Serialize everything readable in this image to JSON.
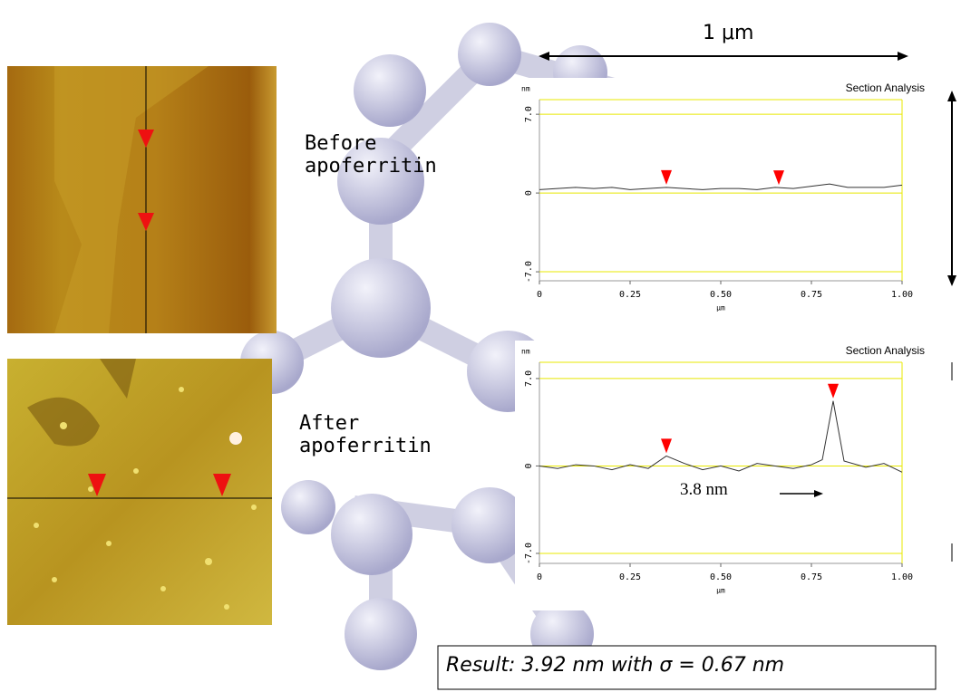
{
  "chart_data": [
    {
      "type": "line",
      "title": "Section Analysis",
      "y_unit": "nm",
      "xlabel": "μm",
      "x": [
        0,
        0.05,
        0.1,
        0.15,
        0.2,
        0.25,
        0.3,
        0.35,
        0.4,
        0.45,
        0.5,
        0.55,
        0.6,
        0.65,
        0.7,
        0.75,
        0.8,
        0.85,
        0.9,
        0.95,
        1.0
      ],
      "values": [
        0.3,
        0.4,
        0.5,
        0.4,
        0.5,
        0.3,
        0.4,
        0.5,
        0.4,
        0.3,
        0.4,
        0.4,
        0.3,
        0.5,
        0.4,
        0.6,
        0.8,
        0.5,
        0.5,
        0.5,
        0.7
      ],
      "color": "#333333",
      "markers": [
        0.35,
        0.66
      ],
      "marker_color": "#ff0000",
      "xlim": [
        0,
        1
      ],
      "xticks": [
        0,
        0.25,
        {
          "value": 0.5,
          "label": "0.50"
        },
        0.75,
        {
          "value": 1,
          "label": "1.00"
        }
      ],
      "ylim": [
        -7.8,
        8.3
      ],
      "yticks": [
        {
          "value": 7,
          "label": "7.0"
        },
        0,
        {
          "value": -7,
          "label": "-7.0"
        }
      ],
      "grid": true,
      "grid_color": "#e8e800"
    },
    {
      "type": "line",
      "title": "Section Analysis",
      "y_unit": "nm",
      "xlabel": "μm",
      "x": [
        0,
        0.05,
        0.1,
        0.15,
        0.2,
        0.25,
        0.3,
        0.35,
        0.4,
        0.45,
        0.5,
        0.55,
        0.6,
        0.65,
        0.7,
        0.75,
        0.78,
        0.81,
        0.84,
        0.9,
        0.95,
        1.0
      ],
      "values": [
        0,
        -0.2,
        0.1,
        0,
        -0.3,
        0.1,
        -0.2,
        0.8,
        0.2,
        -0.3,
        0,
        -0.4,
        0.2,
        0,
        -0.2,
        0.1,
        0.5,
        5.2,
        0.4,
        -0.1,
        0.2,
        -0.5
      ],
      "color": "#333333",
      "markers": [
        0.35,
        0.81
      ],
      "marker_color": "#ff0000",
      "xlim": [
        0,
        1
      ],
      "xticks": [
        0,
        0.25,
        {
          "value": 0.5,
          "label": "0.50"
        },
        0.75,
        {
          "value": 1,
          "label": "1.00"
        }
      ],
      "ylim": [
        -7.8,
        8.3
      ],
      "yticks": [
        {
          "value": 7,
          "label": "7.0"
        },
        0,
        {
          "value": -7,
          "label": "-7.0"
        }
      ],
      "grid": true,
      "grid_color": "#e8e800"
    }
  ],
  "slide": {
    "scale_label": "1 μm",
    "before_label": "Before apoferritin",
    "after_label": "After apoferritin",
    "peak_label": "3.8 nm",
    "result": "Result: 3.92 nm with σ = 0.67 nm"
  }
}
